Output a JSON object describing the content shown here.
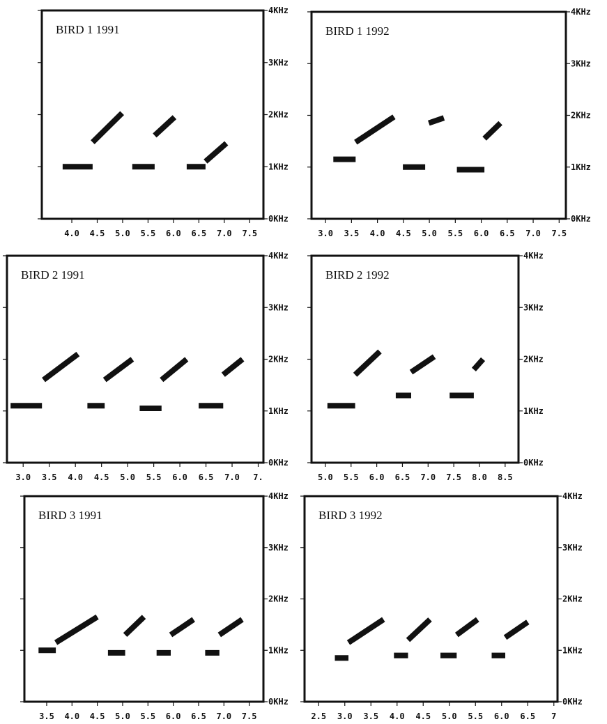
{
  "chart_data": [
    {
      "type": "spectrogram",
      "title": "BIRD 1 1991",
      "xlim": [
        3.41,
        7.77
      ],
      "ylim": [
        0,
        4
      ],
      "xticks": [
        {
          "value": 4,
          "label": "4.0"
        },
        4.5,
        {
          "value": 5,
          "label": "5.0"
        },
        5.5,
        {
          "value": 6,
          "label": "6.0"
        },
        6.5,
        {
          "value": 7,
          "label": "7.0"
        },
        7.5
      ],
      "yticks": [
        {
          "value": 0,
          "label": "0KHz"
        },
        {
          "value": 1,
          "label": "1KHz"
        },
        {
          "value": 2,
          "label": "2KHz"
        },
        {
          "value": 3,
          "label": "3KHz"
        },
        {
          "value": 4,
          "label": "4KHz"
        }
      ],
      "series": [
        {
          "color": "#111111",
          "x": [
            3.82,
            4.41,
            null,
            4.41,
            4.99,
            null,
            5.19,
            5.63,
            null,
            5.63,
            6.02,
            null,
            6.26,
            6.63,
            null,
            6.63,
            7.04
          ],
          "values": [
            1.0,
            1.0,
            null,
            1.47,
            2.03,
            null,
            1.0,
            1.0,
            null,
            1.6,
            1.95,
            null,
            1.0,
            1.0,
            null,
            1.1,
            1.45
          ]
        }
      ]
    },
    {
      "type": "spectrogram",
      "title": "BIRD 1 1992",
      "xlim": [
        2.73,
        7.63
      ],
      "ylim": [
        0,
        4
      ],
      "xticks": [
        {
          "value": 3,
          "label": "3.0"
        },
        3.5,
        {
          "value": 4,
          "label": "4.0"
        },
        4.5,
        {
          "value": 5,
          "label": "5.0"
        },
        5.5,
        {
          "value": 6,
          "label": "6.0"
        },
        6.5,
        {
          "value": 7,
          "label": "7.0"
        },
        7.5
      ],
      "yticks": [
        {
          "value": 0,
          "label": "0KHz"
        },
        {
          "value": 1,
          "label": "1KHz"
        },
        {
          "value": 2,
          "label": "2KHz"
        },
        {
          "value": 3,
          "label": "3KHz"
        },
        {
          "value": 4,
          "label": "4KHz"
        }
      ],
      "series": [
        {
          "color": "#111111",
          "x": [
            3.15,
            3.58,
            null,
            3.58,
            4.32,
            null,
            4.49,
            4.92,
            null,
            4.99,
            5.28,
            null,
            5.53,
            6.06,
            null,
            6.06,
            6.37
          ],
          "values": [
            1.15,
            1.15,
            null,
            1.48,
            1.97,
            null,
            1.0,
            1.0,
            null,
            1.85,
            1.95,
            null,
            0.95,
            0.95,
            null,
            1.55,
            1.85
          ]
        }
      ]
    },
    {
      "type": "spectrogram",
      "title": "BIRD 2 1991",
      "xlim": [
        2.69,
        7.6
      ],
      "ylim": [
        0,
        4
      ],
      "xticks": [
        {
          "value": 3,
          "label": "3.0"
        },
        3.5,
        {
          "value": 4,
          "label": "4.0"
        },
        4.5,
        {
          "value": 5,
          "label": "5.0"
        },
        5.5,
        {
          "value": 6,
          "label": "6.0"
        },
        6.5,
        {
          "value": 7,
          "label": "7.0"
        },
        {
          "value": 7.5,
          "label": "7."
        }
      ],
      "yticks": [
        {
          "value": 0,
          "label": "0KHz"
        },
        {
          "value": 1,
          "label": "1KHz"
        },
        {
          "value": 2,
          "label": "2KHz"
        },
        {
          "value": 3,
          "label": "3KHz"
        },
        {
          "value": 4,
          "label": "4KHz"
        }
      ],
      "series": [
        {
          "color": "#111111",
          "x": [
            2.76,
            3.36,
            null,
            3.39,
            4.05,
            null,
            4.23,
            4.56,
            null,
            4.56,
            5.09,
            null,
            5.23,
            5.65,
            null,
            5.65,
            6.13,
            null,
            6.36,
            6.83,
            null,
            6.83,
            7.2
          ],
          "values": [
            1.1,
            1.1,
            null,
            1.6,
            2.1,
            null,
            1.1,
            1.1,
            null,
            1.6,
            2.0,
            null,
            1.05,
            1.05,
            null,
            1.6,
            2.0,
            null,
            1.1,
            1.1,
            null,
            1.7,
            2.0
          ]
        }
      ]
    },
    {
      "type": "spectrogram",
      "title": "BIRD 2 1992",
      "xlim": [
        4.73,
        8.76
      ],
      "ylim": [
        0,
        4
      ],
      "xticks": [
        {
          "value": 5,
          "label": "5.0"
        },
        5.5,
        {
          "value": 6,
          "label": "6.0"
        },
        6.5,
        {
          "value": 7,
          "label": "7.0"
        },
        7.5,
        {
          "value": 8,
          "label": "8.0"
        },
        8.5
      ],
      "yticks": [
        {
          "value": 0,
          "label": "0KHz"
        },
        {
          "value": 1,
          "label": "1KHz"
        },
        {
          "value": 2,
          "label": "2KHz"
        },
        {
          "value": 3,
          "label": "3KHz"
        },
        {
          "value": 4,
          "label": "4KHz"
        }
      ],
      "series": [
        {
          "color": "#111111",
          "x": [
            5.04,
            5.58,
            null,
            5.58,
            6.06,
            null,
            6.37,
            6.67,
            null,
            6.67,
            7.12,
            null,
            7.42,
            7.89,
            null,
            7.89,
            8.07
          ],
          "values": [
            1.1,
            1.1,
            null,
            1.7,
            2.15,
            null,
            1.3,
            1.3,
            null,
            1.75,
            2.05,
            null,
            1.3,
            1.3,
            null,
            1.8,
            2.0
          ]
        }
      ]
    },
    {
      "type": "spectrogram",
      "title": "BIRD 3 1991",
      "xlim": [
        3.06,
        7.78
      ],
      "ylim": [
        0,
        4
      ],
      "xticks": [
        3.5,
        {
          "value": 4,
          "label": "4.0"
        },
        4.5,
        {
          "value": 5,
          "label": "5.0"
        },
        5.5,
        {
          "value": 6,
          "label": "6.0"
        },
        6.5,
        {
          "value": 7,
          "label": "7.0"
        },
        7.5
      ],
      "yticks": [
        {
          "value": 0,
          "label": "0KHz"
        },
        {
          "value": 1,
          "label": "1KHz"
        },
        {
          "value": 2,
          "label": "2KHz"
        },
        {
          "value": 3,
          "label": "3KHz"
        },
        {
          "value": 4,
          "label": "4KHz"
        }
      ],
      "series": [
        {
          "color": "#111111",
          "x": [
            3.34,
            3.68,
            null,
            3.68,
            4.5,
            null,
            4.71,
            5.05,
            null,
            5.05,
            5.42,
            null,
            5.67,
            5.95,
            null,
            5.95,
            6.4,
            null,
            6.63,
            6.91,
            null,
            6.91,
            7.36
          ],
          "values": [
            1.0,
            1.0,
            null,
            1.15,
            1.65,
            null,
            0.95,
            0.95,
            null,
            1.3,
            1.65,
            null,
            0.95,
            0.95,
            null,
            1.3,
            1.6,
            null,
            0.95,
            0.95,
            null,
            1.3,
            1.6
          ]
        }
      ]
    },
    {
      "type": "spectrogram",
      "title": "BIRD 3 1992",
      "xlim": [
        2.23,
        7.07
      ],
      "ylim": [
        0,
        4
      ],
      "xticks": [
        2.5,
        {
          "value": 3,
          "label": "3.0"
        },
        3.5,
        {
          "value": 4,
          "label": "4.0"
        },
        4.5,
        {
          "value": 5,
          "label": "5.0"
        },
        5.5,
        {
          "value": 6,
          "label": "6.0"
        },
        6.5,
        7
      ],
      "yticks": [
        {
          "value": 0,
          "label": "0KHz"
        },
        {
          "value": 1,
          "label": "1KHz"
        },
        {
          "value": 2,
          "label": "2KHz"
        },
        {
          "value": 3,
          "label": "3KHz"
        },
        {
          "value": 4,
          "label": "4KHz"
        }
      ],
      "series": [
        {
          "color": "#111111",
          "x": [
            2.81,
            3.07,
            null,
            3.07,
            3.74,
            null,
            3.94,
            4.21,
            null,
            4.21,
            4.63,
            null,
            4.83,
            5.14,
            null,
            5.14,
            5.54,
            null,
            5.81,
            6.07,
            null,
            6.07,
            6.5
          ],
          "values": [
            0.85,
            0.85,
            null,
            1.15,
            1.6,
            null,
            0.9,
            0.9,
            null,
            1.2,
            1.6,
            null,
            0.9,
            0.9,
            null,
            1.3,
            1.6,
            null,
            0.9,
            0.9,
            null,
            1.25,
            1.55
          ]
        }
      ]
    }
  ]
}
